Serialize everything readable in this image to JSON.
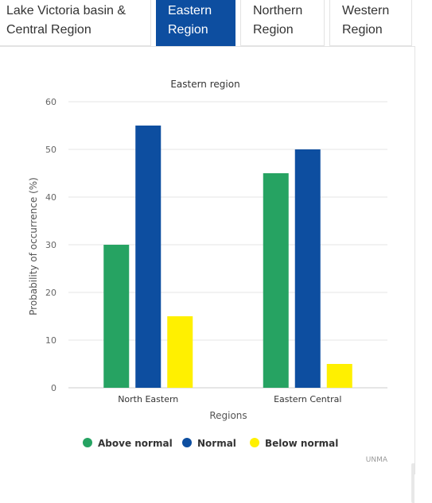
{
  "tabs": [
    {
      "label_line1": "Lake Victoria basin &",
      "label_line2": "Central Region",
      "active": false
    },
    {
      "label_line1": "Eastern",
      "label_line2": "Region",
      "active": true
    },
    {
      "label_line1": "Northern",
      "label_line2": "Region",
      "active": false
    },
    {
      "label_line1": "Western",
      "label_line2": "Region",
      "active": false
    }
  ],
  "chart_data": {
    "type": "bar",
    "title": "Eastern region",
    "xlabel": "Regions",
    "ylabel": "Probability of occurrence (%)",
    "ylim": [
      0,
      60
    ],
    "yticks": [
      0,
      10,
      20,
      30,
      40,
      50,
      60
    ],
    "grid": true,
    "legend_position": "bottom-center",
    "categories": [
      "North Eastern",
      "Eastern Central"
    ],
    "series": [
      {
        "name": "Above normal",
        "color": "#26a362",
        "values": [
          30,
          45
        ]
      },
      {
        "name": "Normal",
        "color": "#0d4ea0",
        "values": [
          55,
          50
        ]
      },
      {
        "name": "Below normal",
        "color": "#fff000",
        "values": [
          15,
          5
        ]
      }
    ],
    "credit": "UNMA"
  }
}
